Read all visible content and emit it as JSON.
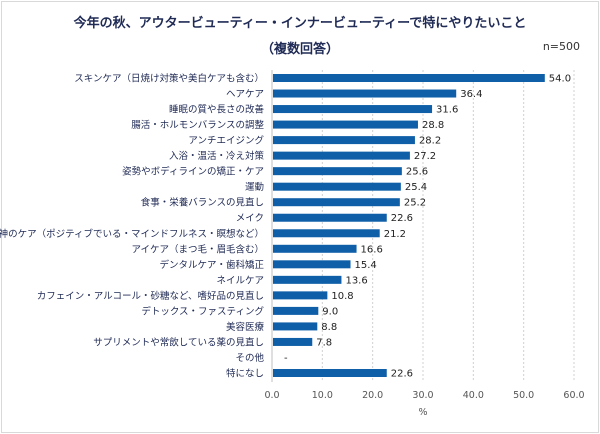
{
  "chart_data": {
    "type": "bar",
    "orientation": "horizontal",
    "title": "今年の秋、アウタービューティー・インナービューティーで特にやりたいこと",
    "subtitle": "（複数回答）",
    "note": "n=500",
    "xlabel": "%",
    "ylabel": "",
    "xlim": [
      0,
      60
    ],
    "xticks": [
      "0.0",
      "10.0",
      "20.0",
      "30.0",
      "40.0",
      "50.0",
      "60.0"
    ],
    "grid": true,
    "bar_color": "#0f5fa8",
    "categories": [
      "スキンケア（日焼け対策や美白ケアも含む）",
      "ヘアケア",
      "睡眠の質や長さの改善",
      "腸活・ホルモンバランスの調整",
      "アンチエイジング",
      "入浴・温活・冷え対策",
      "姿勢やボディラインの矯正・ケア",
      "運動",
      "食事・栄養バランスの見直し",
      "メイク",
      "精神のケア（ポジティブでいる・マインドフルネス・瞑想など）",
      "アイケア（まつ毛・眉毛含む）",
      "デンタルケア・歯科矯正",
      "ネイルケア",
      "カフェイン・アルコール・砂糖など、嗜好品の見直し",
      "デトックス・ファスティング",
      "美容医療",
      "サプリメントや常飲している薬の見直し",
      "その他",
      "特になし"
    ],
    "values": [
      54.0,
      36.4,
      31.6,
      28.8,
      28.2,
      27.2,
      25.6,
      25.4,
      25.2,
      22.6,
      21.2,
      16.6,
      15.4,
      13.6,
      10.8,
      9.0,
      8.8,
      7.8,
      null,
      22.6
    ],
    "value_labels": [
      "54.0",
      "36.4",
      "31.6",
      "28.8",
      "28.2",
      "27.2",
      "25.6",
      "25.4",
      "25.2",
      "22.6",
      "21.2",
      "16.6",
      "15.4",
      "13.6",
      "10.8",
      "9.0",
      "8.8",
      "7.8",
      "-",
      "22.6"
    ]
  }
}
